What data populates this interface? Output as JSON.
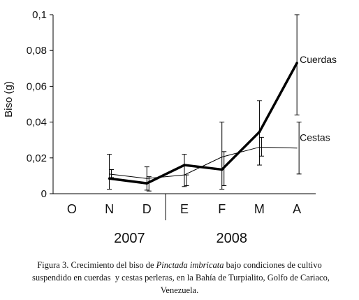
{
  "chart_data": {
    "type": "line",
    "title": "",
    "xlabel": "",
    "ylabel": "Biso (g)",
    "categories": [
      "O",
      "N",
      "D",
      "E",
      "F",
      "M",
      "A"
    ],
    "year_labels": [
      "2007",
      "2008"
    ],
    "yticks": [
      "0",
      "0,02",
      "0,04",
      "0,06",
      "0,08",
      "0,1"
    ],
    "ylim": [
      0,
      0.1
    ],
    "series": [
      {
        "name": "Cuerdas",
        "style": "thick",
        "color": "#000000",
        "x": [
          "N",
          "D",
          "E",
          "F",
          "M",
          "A"
        ],
        "values": [
          0.0085,
          0.0058,
          0.016,
          0.0135,
          0.0345,
          0.073
        ],
        "err_low": [
          0.0025,
          0.002,
          0.004,
          0.0025,
          0.016,
          0.044
        ],
        "err_high": [
          0.022,
          0.015,
          0.022,
          0.04,
          0.052,
          0.1
        ]
      },
      {
        "name": "Cestas",
        "style": "thin",
        "color": "#000000",
        "x": [
          "N",
          "D",
          "E",
          "F",
          "M",
          "A"
        ],
        "values": [
          0.011,
          0.0085,
          0.0105,
          0.0205,
          0.026,
          0.0255
        ],
        "err_low": [
          0.009,
          0.0015,
          0.0045,
          0.0045,
          0.021,
          0.011
        ],
        "err_high": [
          0.0135,
          0.0095,
          0.0105,
          0.0235,
          0.0315,
          0.04
        ]
      }
    ]
  },
  "caption": {
    "prefix": "Figura 3. Crecimiento del biso de ",
    "species": "Pinctada imbricata",
    "suffix": " bajo condiciones de cultivo",
    "line2": "suspendido en cuerdas  y cestas perleras, en la Bahía de Turpialito, Golfo de Cariaco,",
    "line3": "Venezuela."
  }
}
